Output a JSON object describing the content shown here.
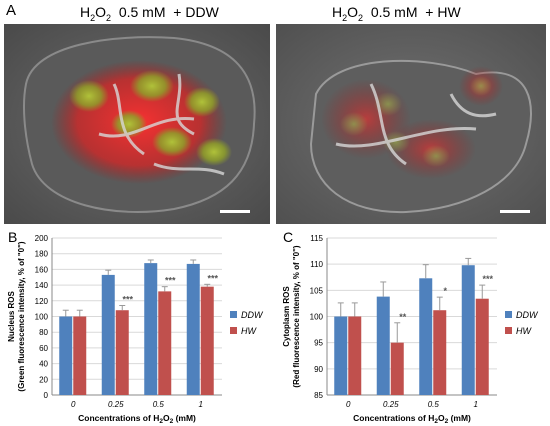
{
  "panel_a": {
    "letter": "A",
    "left_title": {
      "main": "H",
      "sub": "2",
      "mid": "O",
      "sub2": "2",
      "rest": "  0.5 mM  + DDW"
    },
    "right_title": {
      "main": "H",
      "sub": "2",
      "mid": "O",
      "sub2": "2",
      "rest": "  0.5 mM  + HW"
    }
  },
  "colors": {
    "ddw": "#4f81bd",
    "hw": "#c0504d",
    "error": "#999999"
  },
  "chart_data": [
    {
      "panel": "B",
      "type": "bar",
      "categories": [
        "0",
        "0.25",
        "0.5",
        "1"
      ],
      "series": [
        {
          "name": "DDW",
          "values": [
            100,
            153,
            168,
            167
          ],
          "errors": [
            8,
            6,
            4,
            5
          ]
        },
        {
          "name": "HW",
          "values": [
            100,
            108,
            132,
            138
          ],
          "errors": [
            8,
            6,
            6,
            3
          ]
        }
      ],
      "significance": [
        "",
        "***",
        "***",
        "***"
      ],
      "ylim": [
        0,
        200
      ],
      "yticks": [
        0,
        20,
        40,
        60,
        80,
        100,
        120,
        140,
        160,
        180,
        200
      ],
      "ylabel_line1": "Nucleus ROS",
      "ylabel_line2": "(Green fluorescence intensity, % of \"0\")",
      "xlabel": {
        "pre": "Concentrations of H",
        "sub": "2",
        "mid": "O",
        "sub2": "2",
        "post": " (mM)"
      },
      "legend": "right"
    },
    {
      "panel": "C",
      "type": "bar",
      "categories": [
        "0",
        "0.25",
        "0.5",
        "1"
      ],
      "series": [
        {
          "name": "DDW",
          "values": [
            100,
            103.8,
            107.3,
            109.8
          ],
          "errors": [
            2.6,
            2.8,
            2.6,
            1.3
          ]
        },
        {
          "name": "HW",
          "values": [
            100,
            95,
            101.2,
            103.4
          ],
          "errors": [
            2.6,
            3.8,
            2.5,
            2.6
          ]
        }
      ],
      "significance": [
        "",
        "**",
        "*",
        "***"
      ],
      "ylim": [
        85,
        115
      ],
      "yticks": [
        85,
        90,
        95,
        100,
        105,
        110,
        115
      ],
      "ylabel_line1": "Cytoplasm ROS",
      "ylabel_line2": "(Red fluorescence intensity, % of \"0\")",
      "xlabel": {
        "pre": "Concentrations of H",
        "sub": "2",
        "mid": "O",
        "sub2": "2",
        "post": " (mM)"
      },
      "legend": "right"
    }
  ]
}
